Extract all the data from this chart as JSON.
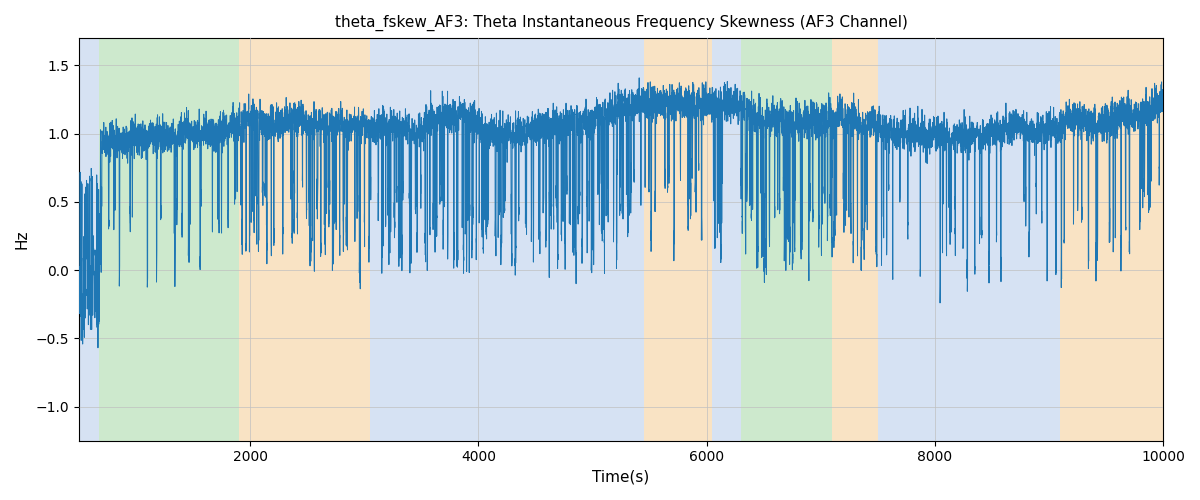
{
  "title": "theta_fskew_AF3: Theta Instantaneous Frequency Skewness (AF3 Channel)",
  "xlabel": "Time(s)",
  "ylabel": "Hz",
  "xlim": [
    500,
    10000
  ],
  "ylim": [
    -1.25,
    1.7
  ],
  "yticks": [
    -1.0,
    -0.5,
    0.0,
    0.5,
    1.0,
    1.5
  ],
  "xticks": [
    2000,
    4000,
    6000,
    8000,
    10000
  ],
  "line_color": "#1f77b4",
  "line_width": 0.7,
  "background_color": "#ffffff",
  "grid_color": "#c0c0c0",
  "bands": [
    {
      "xmin": 500,
      "xmax": 680,
      "color": "#aec6e8",
      "alpha": 0.5
    },
    {
      "xmin": 680,
      "xmax": 1900,
      "color": "#90d090",
      "alpha": 0.45
    },
    {
      "xmin": 1900,
      "xmax": 3050,
      "color": "#f5c98a",
      "alpha": 0.5
    },
    {
      "xmin": 3050,
      "xmax": 3350,
      "color": "#aec6e8",
      "alpha": 0.5
    },
    {
      "xmin": 3350,
      "xmax": 5450,
      "color": "#aec6e8",
      "alpha": 0.5
    },
    {
      "xmin": 5450,
      "xmax": 6050,
      "color": "#f5c98a",
      "alpha": 0.5
    },
    {
      "xmin": 6050,
      "xmax": 6300,
      "color": "#aec6e8",
      "alpha": 0.5
    },
    {
      "xmin": 6300,
      "xmax": 7100,
      "color": "#90d090",
      "alpha": 0.45
    },
    {
      "xmin": 7100,
      "xmax": 7500,
      "color": "#f5c98a",
      "alpha": 0.5
    },
    {
      "xmin": 7500,
      "xmax": 9100,
      "color": "#aec6e8",
      "alpha": 0.5
    },
    {
      "xmin": 9100,
      "xmax": 10000,
      "color": "#f5c98a",
      "alpha": 0.5
    }
  ],
  "figsize": [
    12.0,
    5.0
  ],
  "dpi": 100
}
